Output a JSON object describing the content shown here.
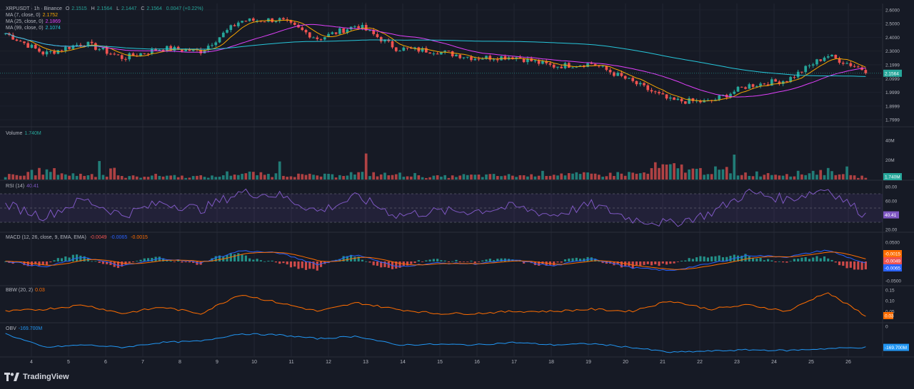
{
  "header": {
    "symbol_line": "XRPUSDT · 1h · Binance",
    "o_label": "O",
    "o": "2.1515",
    "h_label": "H",
    "h": "2.1564",
    "l_label": "L",
    "l": "2.1447",
    "c_label": "C",
    "c": "2.1564",
    "change": "0.0047 (+0.22%)"
  },
  "indicators": {
    "ma7": {
      "label": "MA (7, close, 0)",
      "value": "2.1752",
      "color": "#f7a600"
    },
    "ma25": {
      "label": "MA (25, close, 0)",
      "value": "2.1869",
      "color": "#e040fb"
    },
    "ma99": {
      "label": "MA (99, close, 0)",
      "value": "2.1074",
      "color": "#26c6da"
    },
    "volume": {
      "label": "Volume",
      "value": "1.740M"
    },
    "rsi": {
      "label": "RSI (14)",
      "value": "40.41"
    },
    "macd": {
      "label": "MACD (12, 26, close, 9, EMA, EMA)",
      "v1": "-0.0049",
      "v2": "-0.0065",
      "v3": "-0.0015"
    },
    "bbw": {
      "label": "BBW (20, 2)",
      "value": "0.03"
    },
    "obv": {
      "label": "OBV",
      "value": "-169.700M"
    }
  },
  "price_axis": [
    "2.6000",
    "2.5000",
    "2.4000",
    "2.3000",
    "2.1999",
    "2.0999",
    "1.9999",
    "1.8999",
    "1.7999"
  ],
  "price_badge": "2.1564",
  "volume_axis": [
    "40M",
    "20M"
  ],
  "volume_badge": "1.740M",
  "rsi_axis": [
    "80.00",
    "60.00",
    "40.00",
    "20.00"
  ],
  "rsi_badge": "40.41",
  "macd_axis": [
    "0.0500",
    "0.0000",
    "-0.0500"
  ],
  "macd_badges": [
    "-0.0015",
    "-0.0049",
    "-0.0065"
  ],
  "bbw_axis": [
    "0.15",
    "0.10",
    "0.05"
  ],
  "bbw_badge": "0.03",
  "obv_axis": [
    "0"
  ],
  "obv_badge": "-169.700M",
  "time_axis": [
    "4",
    "5",
    "6",
    "7",
    "8",
    "9",
    "10",
    "11",
    "12",
    "13",
    "14",
    "15",
    "16",
    "17",
    "18",
    "19",
    "20",
    "21",
    "22",
    "23",
    "24",
    "25",
    "26"
  ],
  "brand": "TradingView",
  "colors": {
    "up": "#26a69a",
    "down": "#ef5350",
    "rsi": "#7e57c2",
    "macd": "#2962ff",
    "signal": "#ff6d00",
    "bbw": "#ff6d00",
    "obv": "#2196f3",
    "bg": "#161a25"
  },
  "chart_data": {
    "type": "line",
    "x": [
      "4",
      "5",
      "6",
      "7",
      "8",
      "9",
      "10",
      "11",
      "12",
      "13",
      "14",
      "15",
      "16",
      "17",
      "18",
      "19",
      "20",
      "21",
      "22",
      "23",
      "24",
      "25",
      "26"
    ],
    "ylim": [
      1.78,
      2.62
    ],
    "series": [
      {
        "name": "XRPUSDT",
        "values": [
          2.43,
          2.28,
          2.36,
          2.25,
          2.32,
          2.3,
          2.52,
          2.53,
          2.39,
          2.49,
          2.32,
          2.3,
          2.25,
          2.26,
          2.19,
          2.21,
          2.08,
          1.94,
          1.93,
          2.05,
          2.09,
          2.27,
          2.16
        ]
      }
    ],
    "rsi_values": [
      55,
      38,
      62,
      40,
      58,
      48,
      72,
      68,
      45,
      66,
      40,
      45,
      46,
      52,
      40,
      55,
      35,
      28,
      42,
      72,
      62,
      78,
      40
    ],
    "macd_values": [
      0.002,
      -0.015,
      0.012,
      -0.012,
      0.008,
      -0.003,
      0.028,
      0.022,
      -0.008,
      0.018,
      -0.014,
      -0.004,
      -0.006,
      0.004,
      -0.012,
      0.008,
      -0.016,
      -0.024,
      -0.006,
      0.016,
      0.012,
      0.03,
      -0.005
    ],
    "bbw_values": [
      0.05,
      0.06,
      0.08,
      0.04,
      0.07,
      0.04,
      0.13,
      0.09,
      0.05,
      0.09,
      0.06,
      0.04,
      0.04,
      0.05,
      0.05,
      0.06,
      0.05,
      0.1,
      0.06,
      0.08,
      0.05,
      0.14,
      0.03
    ],
    "obv_values": [
      -60,
      -170,
      -150,
      -170,
      -130,
      -120,
      -60,
      -70,
      -100,
      -80,
      -150,
      -145,
      -150,
      -130,
      -150,
      -140,
      -170,
      -210,
      -200,
      -190,
      -195,
      -180,
      -170
    ],
    "volume_values": [
      4,
      8,
      5,
      3,
      4,
      3,
      6,
      5,
      4,
      6,
      5,
      3,
      4,
      4,
      6,
      5,
      6,
      12,
      9,
      6,
      6,
      8,
      3
    ]
  }
}
